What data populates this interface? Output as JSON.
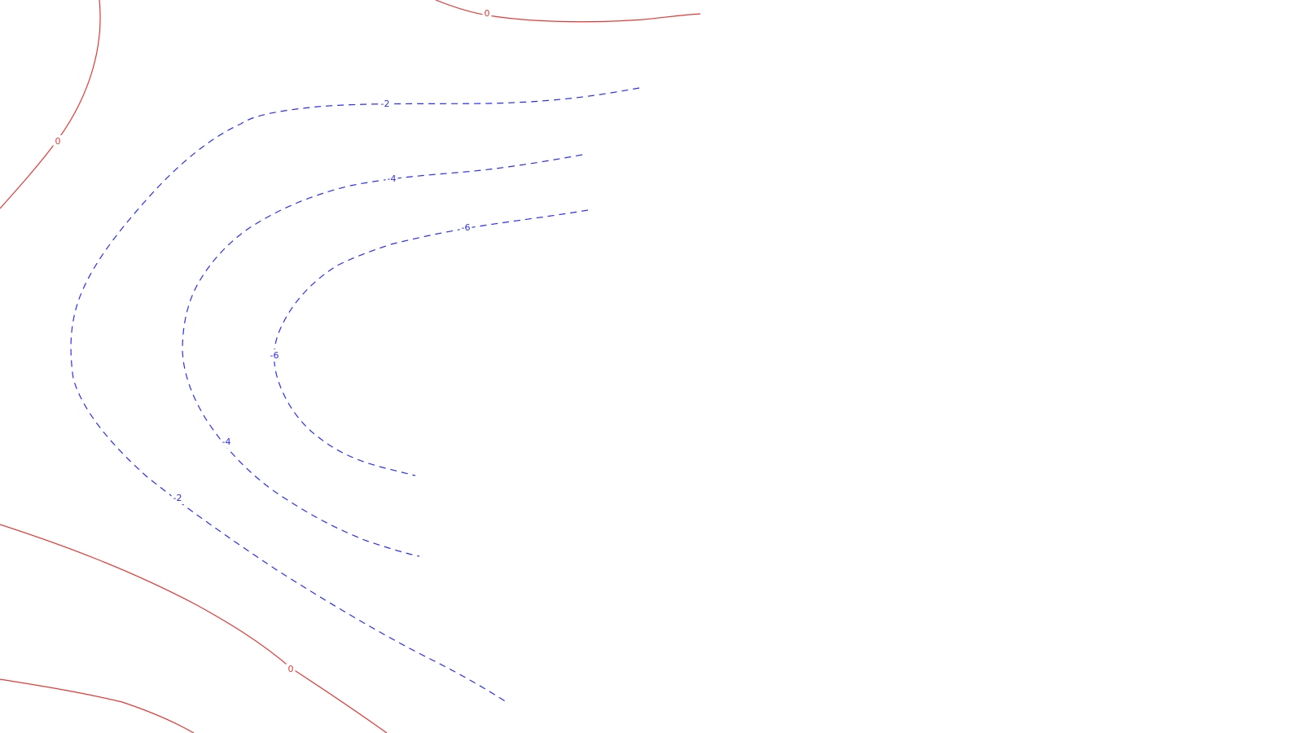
{
  "colors": {
    "background": "#ffffff",
    "zero_contour": "#e53935",
    "negative_contour": "#2b2bff"
  },
  "contours": [
    {
      "id": "zero-top-left",
      "level": "0",
      "style": "solid",
      "color_key": "zero_contour"
    },
    {
      "id": "zero-top-center",
      "level": "0",
      "style": "solid",
      "color_key": "zero_contour"
    },
    {
      "id": "zero-bottom-mid",
      "level": "0",
      "style": "solid",
      "color_key": "zero_contour"
    },
    {
      "id": "zero-bottom-left",
      "level": "",
      "style": "solid",
      "color_key": "zero_contour"
    },
    {
      "id": "neg2",
      "level": "-2",
      "style": "dashed",
      "color_key": "negative_contour"
    },
    {
      "id": "neg4",
      "level": "-4",
      "style": "dashed",
      "color_key": "negative_contour"
    },
    {
      "id": "neg6",
      "level": "-6",
      "style": "dashed",
      "color_key": "negative_contour"
    }
  ],
  "labels": {
    "zero_top_left": "0",
    "zero_top_center": "0",
    "zero_bottom_mid": "0",
    "neg2_top": "-2",
    "neg2_bottom": "-2",
    "neg4_top": "-4",
    "neg4_bottom": "-4",
    "neg6_top": "-6",
    "neg6_left": "-6"
  }
}
